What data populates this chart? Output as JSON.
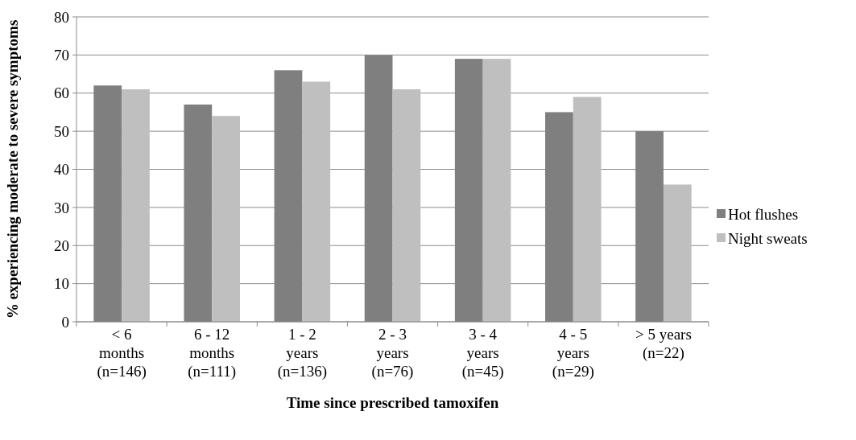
{
  "chart_data": {
    "type": "bar",
    "xlabel": "Time since prescribed tamoxifen",
    "ylabel": "% experiencing moderate to severe symptoms",
    "categories": [
      "< 6\nmonths\n(n=146)",
      "6 - 12\nmonths\n(n=111)",
      "1 - 2\nyears\n(n=136)",
      "2 - 3\nyears\n(n=76)",
      "3 - 4\nyears\n(n=45)",
      "4 - 5\nyears\n(n=29)",
      "> 5 years\n(n=22)"
    ],
    "series": [
      {
        "name": "Hot flushes",
        "color": "#7f7f7f",
        "values": [
          62,
          57,
          66,
          70,
          69,
          55,
          50
        ]
      },
      {
        "name": "Night sweats",
        "color": "#bfbfbf",
        "values": [
          61,
          54,
          63,
          61,
          69,
          59,
          36
        ]
      }
    ],
    "ylim": [
      0,
      80
    ],
    "yticks": [
      0,
      10,
      20,
      30,
      40,
      50,
      60,
      70,
      80
    ],
    "grid": "y",
    "legend": "right"
  }
}
